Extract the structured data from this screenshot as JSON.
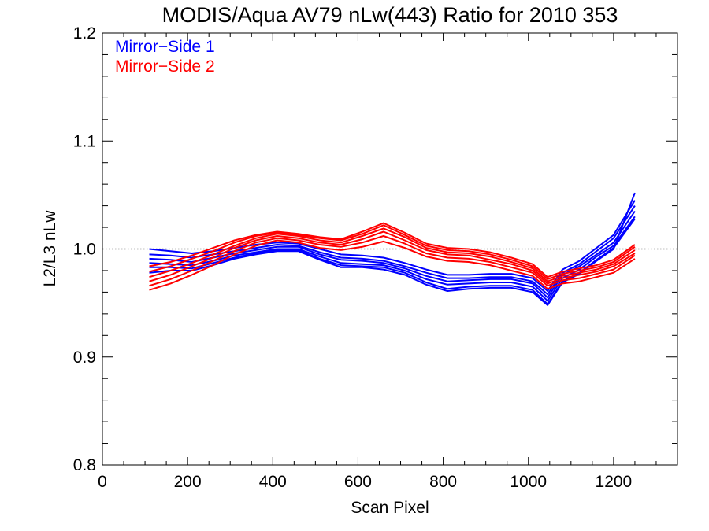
{
  "chart_data": {
    "type": "line",
    "title": "MODIS/Aqua AV79 nLw(443) Ratio for 2010 353",
    "xlabel": "Scan Pixel",
    "ylabel": "L2/L3 nLw",
    "xlim": [
      0,
      1350
    ],
    "ylim": [
      0.8,
      1.2
    ],
    "xticks": [
      0,
      200,
      400,
      600,
      800,
      1000,
      1200
    ],
    "yticks": [
      0.8,
      0.9,
      1.0,
      1.1,
      1.2
    ],
    "xtick_labels": [
      "0",
      "200",
      "400",
      "600",
      "800",
      "1000",
      "1200"
    ],
    "ytick_labels": [
      "0.8",
      "0.9",
      "1.0",
      "1.1",
      "1.2"
    ],
    "grid": false,
    "reference_line": 1.0,
    "legend": {
      "placement": "top-left"
    },
    "x": [
      110,
      160,
      210,
      260,
      310,
      360,
      410,
      460,
      510,
      560,
      610,
      660,
      710,
      760,
      810,
      860,
      910,
      960,
      1010,
      1045,
      1080,
      1120,
      1160,
      1200,
      1250
    ],
    "series": [
      {
        "name": "Mirror−Side 1",
        "color": "#0000ff",
        "values": [
          0.995,
          0.994,
          0.992,
          0.995,
          0.998,
          1.001,
          1.004,
          1.003,
          0.997,
          0.992,
          0.991,
          0.989,
          0.984,
          0.978,
          0.973,
          0.973,
          0.974,
          0.974,
          0.97,
          0.958,
          0.978,
          0.986,
          0.998,
          1.01,
          1.04
        ]
      },
      {
        "name": "Mirror−Side 1",
        "color": "#0000ff",
        "values": [
          0.991,
          0.99,
          0.988,
          0.992,
          0.996,
          0.999,
          1.002,
          1.002,
          0.995,
          0.99,
          0.989,
          0.987,
          0.982,
          0.975,
          0.97,
          0.971,
          0.972,
          0.972,
          0.968,
          0.955,
          0.976,
          0.984,
          0.995,
          1.006,
          1.035
        ]
      },
      {
        "name": "Mirror−Side 1",
        "color": "#0000ff",
        "values": [
          0.987,
          0.986,
          0.985,
          0.989,
          0.994,
          0.997,
          1.0,
          1.0,
          0.993,
          0.987,
          0.986,
          0.985,
          0.98,
          0.972,
          0.967,
          0.968,
          0.969,
          0.969,
          0.965,
          0.952,
          0.973,
          0.981,
          0.993,
          1.003,
          1.03
        ]
      },
      {
        "name": "Mirror−Side 1",
        "color": "#0000ff",
        "values": [
          1.0,
          0.998,
          0.996,
          0.998,
          1.001,
          1.004,
          1.006,
          1.005,
          1.0,
          0.995,
          0.994,
          0.992,
          0.987,
          0.981,
          0.976,
          0.976,
          0.977,
          0.977,
          0.973,
          0.961,
          0.981,
          0.989,
          1.001,
          1.013,
          1.045
        ]
      },
      {
        "name": "Mirror−Side 1",
        "color": "#0000ff",
        "values": [
          0.983,
          0.983,
          0.982,
          0.987,
          0.992,
          0.996,
          0.999,
          0.999,
          0.991,
          0.985,
          0.984,
          0.983,
          0.978,
          0.969,
          0.963,
          0.965,
          0.966,
          0.966,
          0.962,
          0.949,
          0.97,
          0.978,
          0.99,
          1.001,
          1.028
        ]
      },
      {
        "name": "Mirror−Side 1",
        "color": "#0000ff",
        "values": [
          0.978,
          0.98,
          0.98,
          0.985,
          0.991,
          0.995,
          0.998,
          0.998,
          0.99,
          0.983,
          0.983,
          0.981,
          0.976,
          0.967,
          0.961,
          0.963,
          0.964,
          0.964,
          0.96,
          0.948,
          0.969,
          0.977,
          0.989,
          1.0,
          1.052
        ]
      },
      {
        "name": "Mirror−Side 2",
        "color": "#ff0000",
        "values": [
          0.962,
          0.968,
          0.976,
          0.985,
          0.995,
          1.003,
          1.008,
          1.006,
          1.001,
          0.999,
          1.002,
          1.007,
          1.001,
          0.993,
          0.989,
          0.988,
          0.985,
          0.98,
          0.975,
          0.963,
          0.968,
          0.97,
          0.974,
          0.978,
          0.991
        ]
      },
      {
        "name": "Mirror−Side 2",
        "color": "#ff0000",
        "values": [
          0.966,
          0.972,
          0.98,
          0.989,
          0.998,
          1.006,
          1.01,
          1.008,
          1.004,
          1.002,
          1.006,
          1.012,
          1.005,
          0.996,
          0.992,
          0.991,
          0.988,
          0.983,
          0.978,
          0.966,
          0.971,
          0.973,
          0.977,
          0.981,
          0.994
        ]
      },
      {
        "name": "Mirror−Side 2",
        "color": "#ff0000",
        "values": [
          0.97,
          0.976,
          0.984,
          0.992,
          1.001,
          1.008,
          1.012,
          1.01,
          1.006,
          1.004,
          1.009,
          1.016,
          1.008,
          0.999,
          0.995,
          0.994,
          0.99,
          0.986,
          0.98,
          0.968,
          0.973,
          0.976,
          0.979,
          0.984,
          0.996
        ]
      },
      {
        "name": "Mirror−Side 2",
        "color": "#ff0000",
        "values": [
          0.974,
          0.98,
          0.987,
          0.995,
          1.003,
          1.01,
          1.014,
          1.012,
          1.008,
          1.006,
          1.012,
          1.019,
          1.011,
          1.001,
          0.997,
          0.996,
          0.993,
          0.988,
          0.982,
          0.97,
          0.975,
          0.978,
          0.981,
          0.986,
          0.999
        ]
      },
      {
        "name": "Mirror−Side 2",
        "color": "#ff0000",
        "values": [
          0.979,
          0.984,
          0.991,
          0.998,
          1.006,
          1.012,
          1.015,
          1.013,
          1.01,
          1.008,
          1.014,
          1.022,
          1.013,
          1.003,
          0.999,
          0.998,
          0.995,
          0.99,
          0.984,
          0.972,
          0.977,
          0.98,
          0.983,
          0.988,
          1.002
        ]
      },
      {
        "name": "Mirror−Side 2",
        "color": "#ff0000",
        "values": [
          0.984,
          0.988,
          0.994,
          1.001,
          1.008,
          1.013,
          1.016,
          1.014,
          1.011,
          1.009,
          1.016,
          1.024,
          1.015,
          1.005,
          1.001,
          1.0,
          0.997,
          0.992,
          0.986,
          0.974,
          0.979,
          0.982,
          0.985,
          0.99,
          1.004
        ]
      }
    ]
  }
}
